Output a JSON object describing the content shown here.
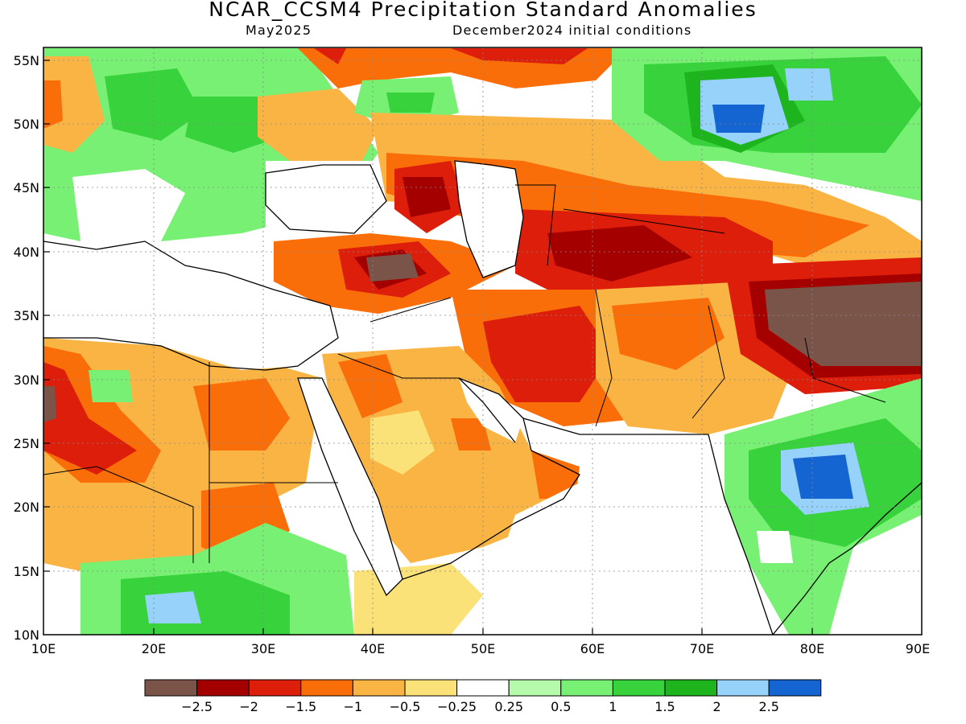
{
  "map": {
    "title": "NCAR_CCSM4 Precipitation Standard Anomalies",
    "valid_month": "May2025",
    "initial_conditions": "December2024 initial conditions",
    "lat_ticks": [
      "55N",
      "50N",
      "45N",
      "40N",
      "35N",
      "30N",
      "25N",
      "20N",
      "15N",
      "10N"
    ],
    "lon_ticks": [
      "10E",
      "20E",
      "30E",
      "40E",
      "50E",
      "60E",
      "70E",
      "80E",
      "90E"
    ],
    "lon_range": [
      10,
      90
    ],
    "lat_range": [
      10,
      56
    ],
    "grid": true
  },
  "colorbar": {
    "colors": [
      "#7a5448",
      "#a50000",
      "#dc1e0a",
      "#fa6e0a",
      "#fab444",
      "#fae178",
      "#ffffff",
      "#b4faaa",
      "#78f073",
      "#37d23c",
      "#1eb41e",
      "#96d2fa",
      "#1464d2"
    ],
    "labels": [
      "−2.5",
      "−2",
      "−1.5",
      "−1",
      "−0.5",
      "−0.25",
      "0.25",
      "0.5",
      "1",
      "1.5",
      "2",
      "2.5"
    ]
  }
}
